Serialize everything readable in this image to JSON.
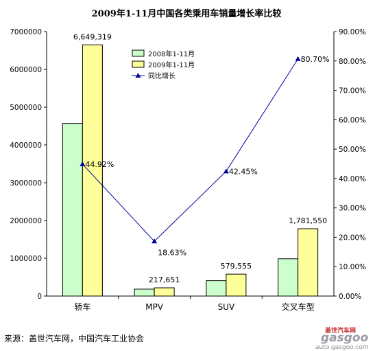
{
  "chart_data": {
    "type": "bar",
    "title": "2009年1-11月中国各类乘用车销量增长率比较",
    "categories": [
      "轿车",
      "MPV",
      "SUV",
      "交叉车型"
    ],
    "series": [
      {
        "name": "2008年1-11月",
        "type": "bar",
        "axis": "left",
        "color": "#ccffcc",
        "values": [
          4570000,
          183000,
          407000,
          986000
        ],
        "labels": [
          "",
          "",
          "",
          ""
        ]
      },
      {
        "name": "2009年1-11月",
        "type": "bar",
        "axis": "left",
        "color": "#ffff99",
        "values": [
          6649319,
          217651,
          579555,
          1781550
        ],
        "labels": [
          "6,649,319",
          "217,651",
          "579,555",
          "1,781,550"
        ]
      },
      {
        "name": "同比增长",
        "type": "line",
        "axis": "right",
        "color": "#000099",
        "values": [
          44.92,
          18.63,
          42.45,
          80.7
        ],
        "labels": [
          "44.92%",
          "18.63%",
          "42.45%",
          "80.70%"
        ]
      }
    ],
    "y_left": {
      "min": 0,
      "max": 7000000,
      "step": 1000000,
      "ticks": [
        "0",
        "1000000",
        "2000000",
        "3000000",
        "4000000",
        "5000000",
        "6000000",
        "7000000"
      ]
    },
    "y_right": {
      "min": 0,
      "max": 90,
      "step": 10,
      "ticks": [
        "0.00%",
        "10.00%",
        "20.00%",
        "30.00%",
        "40.00%",
        "50.00%",
        "60.00%",
        "70.00%",
        "80.00%",
        "90.00%"
      ]
    },
    "legend_position": "top-center",
    "grid": false
  },
  "source_note": "来源：盖世汽车网，中国汽车工业协会",
  "watermark": {
    "brand": "盖世汽车网",
    "logo": "gasgoo",
    "url": "auto.gasgoo.com"
  }
}
